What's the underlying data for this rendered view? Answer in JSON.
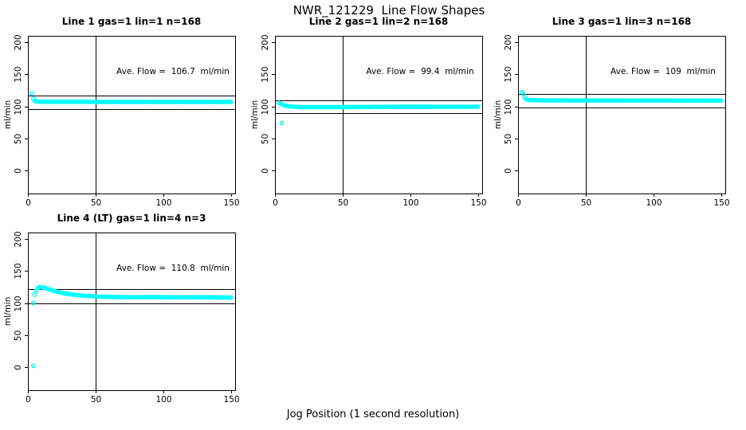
{
  "figure": {
    "title": "NWR_121229  Line Flow Shapes",
    "xlabel": "Jog Position (1 second resolution)",
    "background_color": "#ffffff",
    "point_color": "#00ffff",
    "axis_color": "#000000"
  },
  "chart_data": [
    {
      "type": "scatter",
      "title": "Line 1 gas=1 lin=1 n=168",
      "line": 1,
      "gas": 1,
      "lin": 1,
      "n": 168,
      "annotation": "Ave. Flow =  106.7  ml/min",
      "ave_flow_ml_min": 106.7,
      "ylabel": "ml/min",
      "x_ticks": [
        0,
        50,
        100,
        150
      ],
      "y_ticks": [
        0,
        50,
        100,
        150,
        200
      ],
      "xlim": [
        0,
        153
      ],
      "ylim": [
        -36,
        210
      ],
      "ref_line_x": 50,
      "ref_lines_y": [
        117.4,
        96.0
      ],
      "marker": "open-circle",
      "grid": false,
      "keypoints": [
        [
          3,
          120
        ],
        [
          4,
          112
        ],
        [
          5,
          108.5
        ],
        [
          8,
          107.2
        ],
        [
          60,
          107
        ],
        [
          150,
          107
        ]
      ],
      "outliers": []
    },
    {
      "type": "scatter",
      "title": "Line 2 gas=1 lin=2 n=168",
      "line": 2,
      "gas": 1,
      "lin": 2,
      "n": 168,
      "annotation": "Ave. Flow =  99.4  ml/min",
      "ave_flow_ml_min": 99.4,
      "ylabel": "ml/min",
      "x_ticks": [
        0,
        50,
        100,
        150
      ],
      "y_ticks": [
        0,
        50,
        100,
        150,
        200
      ],
      "xlim": [
        0,
        153
      ],
      "ylim": [
        -36,
        210
      ],
      "ref_line_x": 50,
      "ref_lines_y": [
        109.3,
        89.5
      ],
      "marker": "open-circle",
      "grid": false,
      "keypoints": [
        [
          3,
          105.5
        ],
        [
          4,
          104.5
        ],
        [
          6,
          102
        ],
        [
          9,
          100.5
        ],
        [
          13,
          99.5
        ],
        [
          20,
          98.8
        ],
        [
          40,
          98.8
        ],
        [
          80,
          99.2
        ],
        [
          150,
          99.5
        ]
      ],
      "outliers": [
        [
          5,
          74
        ]
      ]
    },
    {
      "type": "scatter",
      "title": "Line 3 gas=1 lin=3 n=168",
      "line": 3,
      "gas": 1,
      "lin": 3,
      "n": 168,
      "annotation": "Ave. Flow =  109  ml/min",
      "ave_flow_ml_min": 109,
      "ylabel": "ml/min",
      "x_ticks": [
        0,
        50,
        100,
        150
      ],
      "y_ticks": [
        0,
        50,
        100,
        150,
        200
      ],
      "xlim": [
        0,
        153
      ],
      "ylim": [
        -36,
        210
      ],
      "ref_line_x": 50,
      "ref_lines_y": [
        119.9,
        98.1
      ],
      "marker": "open-circle",
      "grid": false,
      "keypoints": [
        [
          3,
          122
        ],
        [
          4,
          119
        ],
        [
          5,
          113.5
        ],
        [
          6,
          111
        ],
        [
          8,
          109.8
        ],
        [
          20,
          109.2
        ],
        [
          150,
          109
        ]
      ],
      "outliers": []
    },
    {
      "type": "scatter",
      "title": "Line 4 (LT) gas=1 lin=4 n=3",
      "line": 4,
      "gas": 1,
      "lin": 4,
      "n": 3,
      "annotation": "Ave. Flow =  110.8  ml/min",
      "ave_flow_ml_min": 110.8,
      "ylabel": "ml/min",
      "x_ticks": [
        0,
        50,
        100,
        150
      ],
      "y_ticks": [
        0,
        50,
        100,
        150,
        200
      ],
      "xlim": [
        0,
        153
      ],
      "ylim": [
        -36,
        210
      ],
      "ref_line_x": 50,
      "ref_lines_y": [
        121.9,
        99.7
      ],
      "marker": "open-circle",
      "grid": false,
      "keypoints": [
        [
          4,
          100
        ],
        [
          5,
          113
        ],
        [
          6,
          119
        ],
        [
          7,
          123
        ],
        [
          9,
          125
        ],
        [
          12,
          124
        ],
        [
          16,
          121
        ],
        [
          20,
          118.5
        ],
        [
          25,
          116
        ],
        [
          30,
          114
        ],
        [
          36,
          112.5
        ],
        [
          42,
          111.3
        ],
        [
          50,
          110.3
        ],
        [
          60,
          109.6
        ],
        [
          75,
          109
        ],
        [
          90,
          109.3
        ],
        [
          110,
          108.8
        ],
        [
          130,
          109
        ],
        [
          150,
          108.5
        ]
      ],
      "outliers": [
        [
          4,
          2
        ]
      ]
    }
  ]
}
